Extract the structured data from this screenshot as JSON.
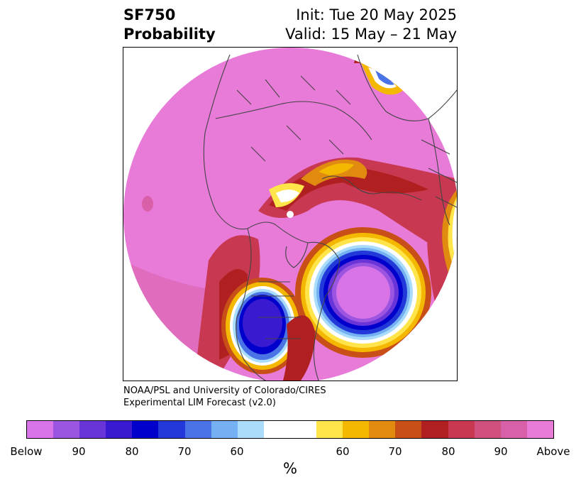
{
  "header": {
    "variable": "SF750",
    "field": "Probability",
    "init": "Init: Tue 20 May 2025",
    "valid": "Valid: 15 May – 21 May"
  },
  "credit": {
    "line1": "NOAA/PSL and University of Colorado/CIRES",
    "line2": "Experimental LIM Forecast (v2.0)"
  },
  "colorbar": {
    "unit": "%",
    "below_colors": [
      "#d873e8",
      "#9b55e0",
      "#6a35d8",
      "#3a1ad0",
      "#0000cc",
      "#2238d8",
      "#4a74e6",
      "#74b0f2",
      "#aadcfb"
    ],
    "neutral_color": "#ffffff",
    "above_colors": [
      "#ffe44a",
      "#f4b800",
      "#e08a10",
      "#c85018",
      "#b02020",
      "#c83850",
      "#d05080",
      "#d860a8",
      "#e87ad8"
    ],
    "tick_labels": [
      "Below",
      "90",
      "80",
      "70",
      "60",
      "60",
      "70",
      "80",
      "90",
      "Above"
    ]
  },
  "map": {
    "projection": "north-polar-stereographic",
    "background_color": "#e87ad8",
    "coastline_color": "#444444"
  }
}
